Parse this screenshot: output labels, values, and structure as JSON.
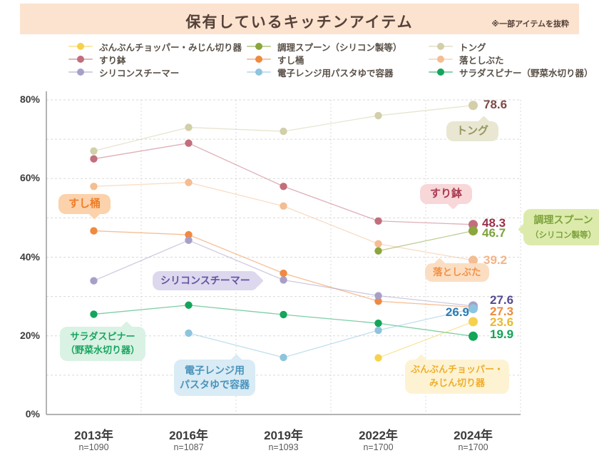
{
  "header": {
    "title": "保有しているキッチンアイテム",
    "note": "※一部アイテムを抜粋"
  },
  "legend": {
    "columns": [
      [
        {
          "label": "ぶんぶんチョッパー・みじん切り器",
          "color": "#f6d14e"
        },
        {
          "label": "すり鉢",
          "color": "#c26e7c"
        },
        {
          "label": "シリコンスチーマー",
          "color": "#a89fc9"
        }
      ],
      [
        {
          "label": "調理スプーン（シリコン製等）",
          "color": "#8aa63c"
        },
        {
          "label": "すし桶",
          "color": "#ef8a40"
        },
        {
          "label": "電子レンジ用パスタゆで容器",
          "color": "#8ec4dd"
        }
      ],
      [
        {
          "label": "トング",
          "color": "#d2cfa9"
        },
        {
          "label": "落としぶた",
          "color": "#f4bd92"
        },
        {
          "label": "サラダスピナー（野菜水切り器）",
          "color": "#14a55b"
        }
      ]
    ]
  },
  "chart_data": {
    "type": "line",
    "title": "保有しているキッチンアイテム",
    "x_categories": [
      "2013年",
      "2016年",
      "2019年",
      "2022年",
      "2024年"
    ],
    "sample_sizes": [
      "n=1090",
      "n=1087",
      "n=1093",
      "n=1700",
      "n=1700"
    ],
    "ylim": [
      0,
      80
    ],
    "grid": true,
    "legend_position": "top",
    "yticks": [
      {
        "label": "0%",
        "value": 0
      },
      {
        "label": "20%",
        "value": 20
      },
      {
        "label": "40%",
        "value": 40
      },
      {
        "label": "60%",
        "value": 60
      },
      {
        "label": "80%",
        "value": 80
      }
    ],
    "series": [
      {
        "name": "トング",
        "color": "#d2cfa9",
        "values": [
          67,
          73,
          72,
          76,
          78.6
        ]
      },
      {
        "name": "すり鉢",
        "color": "#c26e7c",
        "values": [
          65,
          69,
          58,
          49.2,
          48.3
        ]
      },
      {
        "name": "落としぶた",
        "color": "#f4bd92",
        "values": [
          58,
          59,
          53,
          43.4,
          39.2
        ]
      },
      {
        "name": "すし桶",
        "color": "#ef8a40",
        "values": [
          46.7,
          45.7,
          35.9,
          28.8,
          27.3
        ]
      },
      {
        "name": "シリコンスチーマー",
        "color": "#a89fc9",
        "values": [
          34,
          44.3,
          34.2,
          30.2,
          27.6
        ]
      },
      {
        "name": "調理スプーン（シリコン製等）",
        "color": "#8aa63c",
        "values": [
          null,
          null,
          null,
          41.6,
          46.7
        ]
      },
      {
        "name": "サラダスピナー（野菜水切り器）",
        "color": "#14a55b",
        "values": [
          25.5,
          27.8,
          25.4,
          23.2,
          19.9
        ]
      },
      {
        "name": "電子レンジ用パスタゆで容器",
        "color": "#8ec4dd",
        "values": [
          null,
          20.7,
          14.5,
          21.4,
          26.9
        ]
      },
      {
        "name": "ぶんぶんチョッパー・みじん切り器",
        "color": "#f6d14e",
        "values": [
          null,
          null,
          null,
          14.4,
          23.6
        ]
      }
    ]
  },
  "end_labels": {
    "tong": {
      "value": "78.6",
      "color": "#7d4944"
    },
    "suribachi": {
      "value": "48.3",
      "color": "#9b2d49"
    },
    "spoon": {
      "value": "46.7",
      "color": "#7ea13b"
    },
    "otoshibuta": {
      "value": "39.2",
      "color": "#f2b488"
    },
    "steamer": {
      "value": "27.6",
      "color": "#55498f"
    },
    "pasta": {
      "value": "26.9",
      "color": "#2b7db3"
    },
    "sushioke": {
      "value": "27.3",
      "color": "#ed8a3d"
    },
    "chopper": {
      "value": "23.6",
      "color": "#e9b92f"
    },
    "spinner": {
      "value": "19.9",
      "color": "#12a356"
    }
  },
  "annotations": {
    "tong": {
      "lines": [
        "トング"
      ],
      "bg": "#e9e6d2",
      "color": "#96975f"
    },
    "suribachi": {
      "lines": [
        "すり鉢"
      ],
      "bg": "#f8d7d9",
      "color": "#a93a52"
    },
    "spoon": {
      "lines": [
        "調理スプーン",
        "（シリコン製等）"
      ],
      "bg": "#dcebac",
      "color": "#7da23c"
    },
    "otoshibuta": {
      "lines": [
        "落としぶた"
      ],
      "bg": "#fbdec2",
      "color": "#f29147"
    },
    "sushioke": {
      "lines": [
        "すし桶"
      ],
      "bg": "#fbd2ab",
      "color": "#ee7d28"
    },
    "steamer": {
      "lines": [
        "シリコンスチーマー"
      ],
      "bg": "#ddd8ed",
      "color": "#6055a3"
    },
    "spinner": {
      "lines": [
        "サラダスピナー",
        "（野菜水切り器）"
      ],
      "bg": "#d9f2e4",
      "color": "#18a55e"
    },
    "pasta": {
      "lines": [
        "電子レンジ用",
        "パスタゆで容器"
      ],
      "bg": "#d9ebf4",
      "color": "#4b93bd"
    },
    "chopper": {
      "lines": [
        "ぶんぶんチョッパー・",
        "みじん切り器"
      ],
      "bg": "#fdf3d3",
      "color": "#efae2a"
    }
  }
}
